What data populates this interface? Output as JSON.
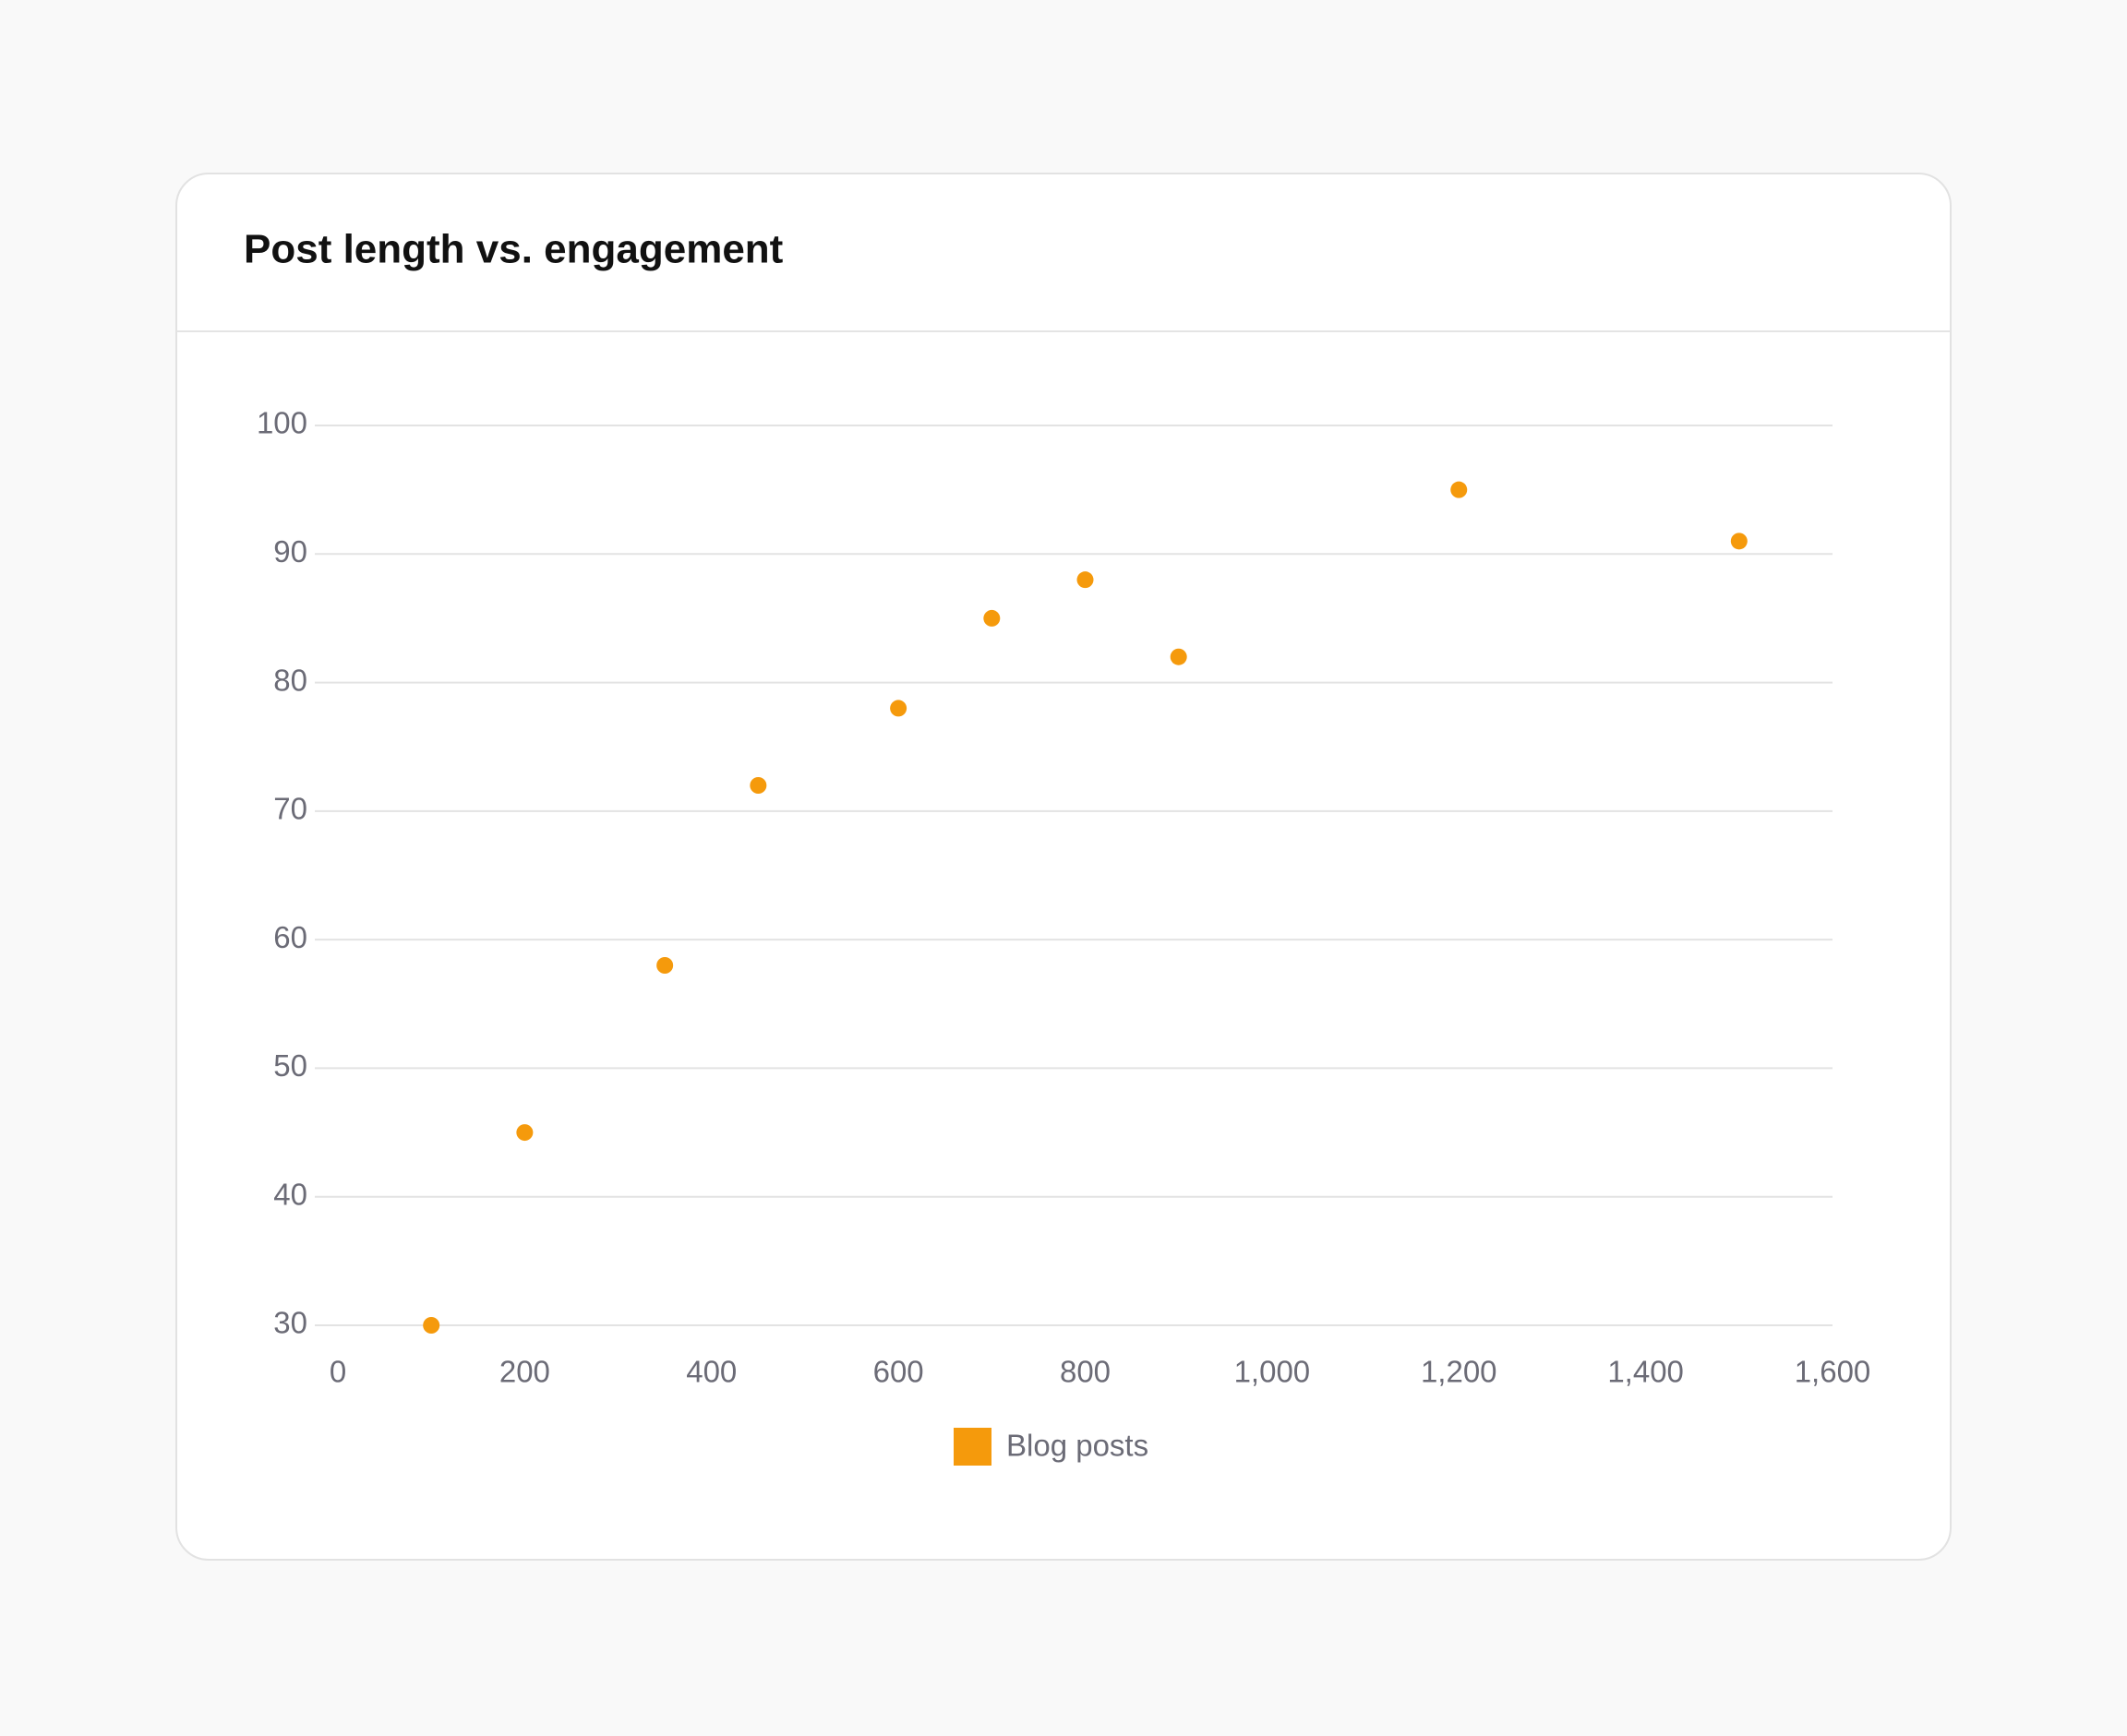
{
  "chart_data": {
    "type": "scatter",
    "title": "Post length vs. engagement",
    "series": [
      {
        "name": "Blog posts",
        "color": "#f59a0c",
        "x": [
          100,
          200,
          350,
          450,
          600,
          700,
          800,
          900,
          1200,
          1500
        ],
        "values": [
          30,
          45,
          58,
          72,
          78,
          85,
          88,
          82,
          95,
          91
        ]
      }
    ],
    "xlim": [
      0,
      1600
    ],
    "xticks": [
      0,
      200,
      400,
      600,
      800,
      {
        "value": 1000,
        "label": "1,000"
      },
      {
        "value": 1200,
        "label": "1,200"
      },
      {
        "value": 1400,
        "label": "1,400"
      },
      {
        "value": 1600,
        "label": "1,600"
      }
    ],
    "ylim": [
      30,
      100
    ],
    "yticks": [
      30,
      40,
      50,
      60,
      70,
      80,
      90,
      100
    ],
    "grid": true,
    "legend": "bottom"
  }
}
